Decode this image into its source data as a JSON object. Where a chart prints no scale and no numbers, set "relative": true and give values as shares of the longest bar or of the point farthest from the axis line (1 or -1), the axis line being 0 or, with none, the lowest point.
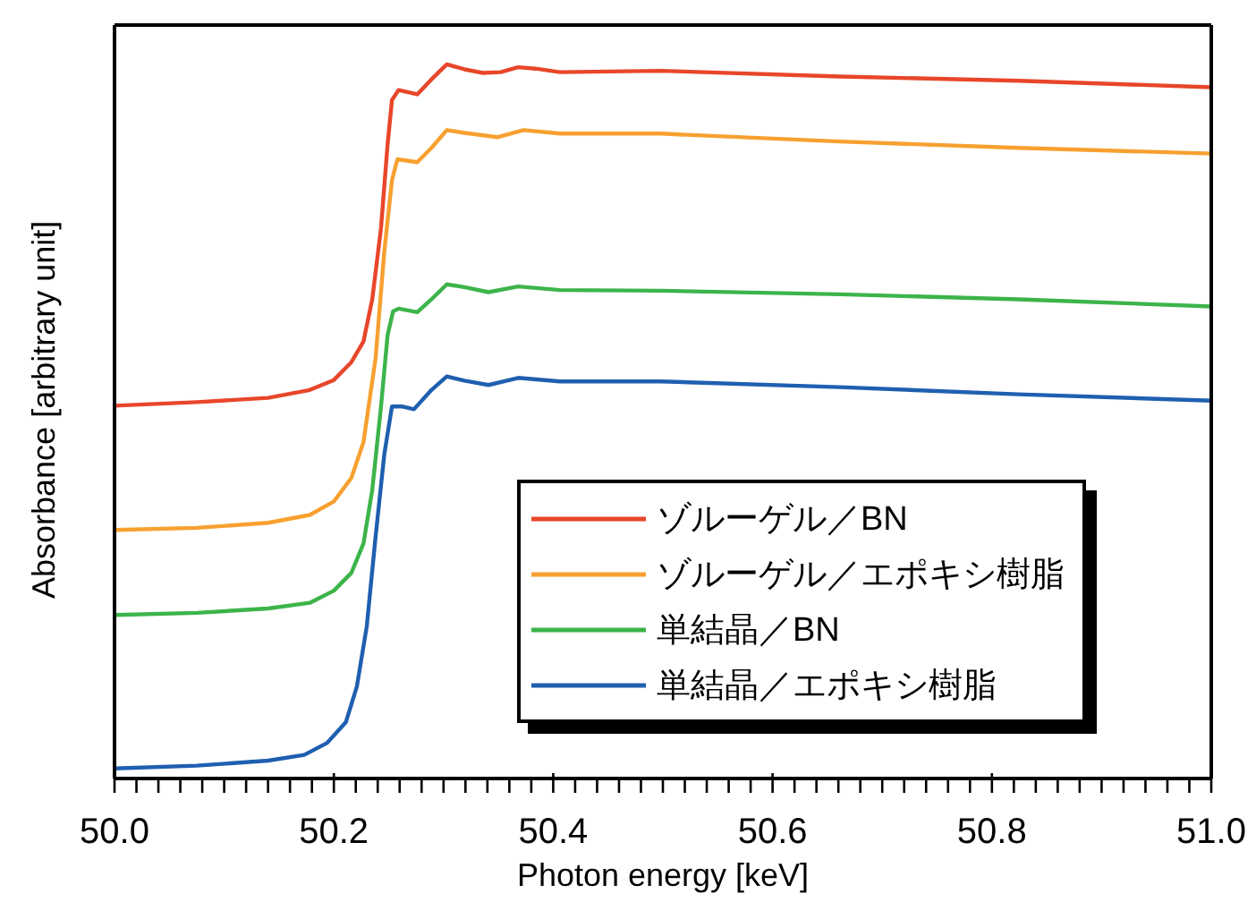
{
  "chart_data": {
    "type": "line",
    "relative": true,
    "xlabel": "Photon energy [keV]",
    "ylabel": "Absorbance [arbitrary unit]",
    "xlim": [
      50.0,
      51.0
    ],
    "xticks": [
      {
        "value": 50.0,
        "label": "50.0"
      },
      {
        "value": 50.02,
        "label": null
      },
      {
        "value": 50.04,
        "label": null
      },
      {
        "value": 50.06,
        "label": null
      },
      {
        "value": 50.08,
        "label": null
      },
      {
        "value": 50.1,
        "label": null
      },
      {
        "value": 50.12,
        "label": null
      },
      {
        "value": 50.14,
        "label": null
      },
      {
        "value": 50.16,
        "label": null
      },
      {
        "value": 50.18,
        "label": null
      },
      {
        "value": 50.2,
        "label": "50.2"
      },
      {
        "value": 50.22,
        "label": null
      },
      {
        "value": 50.24,
        "label": null
      },
      {
        "value": 50.26,
        "label": null
      },
      {
        "value": 50.28,
        "label": null
      },
      {
        "value": 50.3,
        "label": null
      },
      {
        "value": 50.32,
        "label": null
      },
      {
        "value": 50.34,
        "label": null
      },
      {
        "value": 50.36,
        "label": null
      },
      {
        "value": 50.38,
        "label": null
      },
      {
        "value": 50.4,
        "label": "50.4"
      },
      {
        "value": 50.42,
        "label": null
      },
      {
        "value": 50.44,
        "label": null
      },
      {
        "value": 50.46,
        "label": null
      },
      {
        "value": 50.48,
        "label": null
      },
      {
        "value": 50.5,
        "label": null
      },
      {
        "value": 50.52,
        "label": null
      },
      {
        "value": 50.54,
        "label": null
      },
      {
        "value": 50.56,
        "label": null
      },
      {
        "value": 50.58,
        "label": null
      },
      {
        "value": 50.6,
        "label": "50.6"
      },
      {
        "value": 50.62,
        "label": null
      },
      {
        "value": 50.64,
        "label": null
      },
      {
        "value": 50.66,
        "label": null
      },
      {
        "value": 50.68,
        "label": null
      },
      {
        "value": 50.7,
        "label": null
      },
      {
        "value": 50.72,
        "label": null
      },
      {
        "value": 50.74,
        "label": null
      },
      {
        "value": 50.76,
        "label": null
      },
      {
        "value": 50.78,
        "label": null
      },
      {
        "value": 50.8,
        "label": "50.8"
      },
      {
        "value": 50.82,
        "label": null
      },
      {
        "value": 50.84,
        "label": null
      },
      {
        "value": 50.86,
        "label": null
      },
      {
        "value": 50.88,
        "label": null
      },
      {
        "value": 50.9,
        "label": null
      },
      {
        "value": 50.92,
        "label": null
      },
      {
        "value": 50.94,
        "label": null
      },
      {
        "value": 50.96,
        "label": null
      },
      {
        "value": 50.98,
        "label": null
      },
      {
        "value": 51.0,
        "label": "51.0"
      }
    ],
    "legend": "bottom right",
    "marker": "none",
    "line_style": "solid",
    "series": [
      {
        "name": "ゾルーゲル／BN",
        "color": "#e8462a",
        "x": [
          50.0,
          50.075,
          50.14,
          50.178,
          50.2,
          50.216,
          50.227,
          50.235,
          50.243,
          50.249,
          50.253,
          50.259,
          50.276,
          50.289,
          50.303,
          50.319,
          50.336,
          50.352,
          50.368,
          50.384,
          50.406,
          50.498,
          50.661,
          50.824,
          51.0
        ],
        "values": [
          0.522,
          0.527,
          0.533,
          0.544,
          0.558,
          0.583,
          0.612,
          0.671,
          0.771,
          0.888,
          0.95,
          0.964,
          0.958,
          0.979,
          1.0,
          0.993,
          0.988,
          0.989,
          0.996,
          0.994,
          0.989,
          0.991,
          0.983,
          0.977,
          0.968
        ]
      },
      {
        "name": "ゾルーゲル／エポキシ樹脂",
        "color": "#f7a030",
        "x": [
          50.0,
          50.075,
          50.14,
          50.178,
          50.2,
          50.216,
          50.227,
          50.238,
          50.246,
          50.253,
          50.258,
          50.276,
          50.289,
          50.303,
          50.319,
          50.349,
          50.373,
          50.406,
          50.498,
          50.661,
          50.824,
          51.0
        ],
        "values": [
          0.348,
          0.351,
          0.358,
          0.369,
          0.388,
          0.421,
          0.471,
          0.588,
          0.738,
          0.838,
          0.867,
          0.863,
          0.883,
          0.908,
          0.904,
          0.898,
          0.908,
          0.903,
          0.903,
          0.892,
          0.883,
          0.875
        ]
      },
      {
        "name": "単結晶／BN",
        "color": "#3cb44a",
        "x": [
          50.0,
          50.075,
          50.14,
          50.178,
          50.2,
          50.216,
          50.227,
          50.235,
          50.243,
          50.249,
          50.254,
          50.259,
          50.276,
          50.289,
          50.303,
          50.319,
          50.341,
          50.368,
          50.406,
          50.498,
          50.661,
          50.824,
          51.0
        ],
        "values": [
          0.229,
          0.232,
          0.238,
          0.246,
          0.263,
          0.288,
          0.329,
          0.404,
          0.521,
          0.621,
          0.654,
          0.658,
          0.653,
          0.671,
          0.692,
          0.688,
          0.681,
          0.689,
          0.684,
          0.683,
          0.678,
          0.671,
          0.661
        ]
      },
      {
        "name": "単結晶／エポキシ樹脂",
        "color": "#1f5fb0",
        "x": [
          50.0,
          50.075,
          50.14,
          50.173,
          50.194,
          50.211,
          50.221,
          50.23,
          50.238,
          50.246,
          50.253,
          50.262,
          50.273,
          50.289,
          50.303,
          50.319,
          50.341,
          50.368,
          50.406,
          50.498,
          50.661,
          50.824,
          51.0
        ],
        "values": [
          0.014,
          0.018,
          0.025,
          0.033,
          0.05,
          0.079,
          0.129,
          0.213,
          0.338,
          0.454,
          0.521,
          0.521,
          0.517,
          0.544,
          0.563,
          0.557,
          0.551,
          0.561,
          0.556,
          0.556,
          0.548,
          0.538,
          0.529
        ]
      }
    ]
  }
}
